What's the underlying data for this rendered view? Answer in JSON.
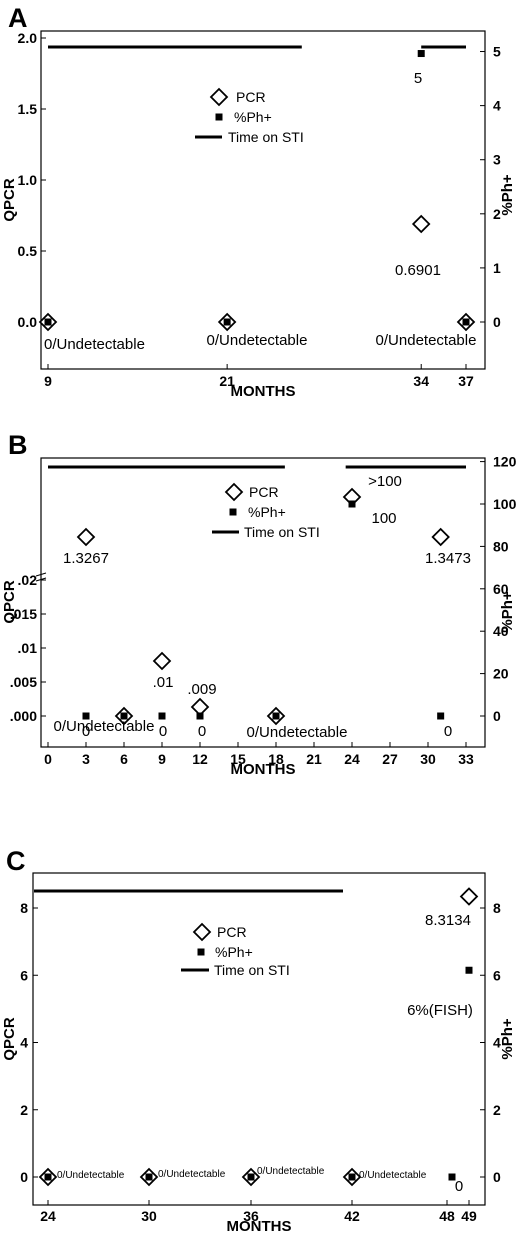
{
  "chart_data": [
    {
      "panel": "A",
      "type": "scatter",
      "xlabel": "MONTHS",
      "ylabel": "QPCR",
      "y2label": "%Ph+",
      "x_ticks": [
        "9",
        "21",
        "34",
        "37"
      ],
      "xlim": [
        9,
        37
      ],
      "y_ticks": [
        "0.0",
        "0.5",
        "1.0",
        "1.5",
        "2.0"
      ],
      "ylim": [
        0,
        2.0
      ],
      "y2_ticks": [
        "0",
        "1",
        "2",
        "3",
        "4",
        "5"
      ],
      "y2lim": [
        0,
        5.25
      ],
      "grid": false,
      "legend": {
        "position": "center-top",
        "entries": [
          "PCR",
          "%Ph+",
          "Time on STI"
        ]
      },
      "series": [
        {
          "name": "PCR",
          "marker": "diamond",
          "axis": "left",
          "points": [
            {
              "x": 9,
              "y": 0
            },
            {
              "x": 21,
              "y": 0
            },
            {
              "x": 34,
              "y": 0.6901
            },
            {
              "x": 37,
              "y": 0
            }
          ]
        },
        {
          "name": "%Ph+",
          "marker": "square",
          "axis": "right",
          "points": [
            {
              "x": 9,
              "y": 0
            },
            {
              "x": 21,
              "y": 0
            },
            {
              "x": 34,
              "y": 5
            },
            {
              "x": 37,
              "y": 0
            }
          ]
        },
        {
          "name": "Time on STI",
          "marker": "line",
          "axis": "right",
          "segments": [
            {
              "x0": 9,
              "x1": 26,
              "y": 5.03
            },
            {
              "x0": 34,
              "x1": 37,
              "y": 5.03
            }
          ]
        }
      ],
      "annotations": [
        {
          "text": "0/Undetectable",
          "x": 9,
          "y": 0
        },
        {
          "text": "0/Undetectable",
          "x": 21,
          "y": 0
        },
        {
          "text": "0/Undetectable",
          "x": 34,
          "y": 0
        },
        {
          "text": "0.6901",
          "x": 34,
          "y": 0.6901
        },
        {
          "text": "5",
          "x": 34,
          "y": 5
        }
      ]
    },
    {
      "panel": "B",
      "type": "scatter",
      "xlabel": "MONTHS",
      "ylabel": "QPCR",
      "y2label": "%Ph+",
      "x_ticks": [
        "0",
        "3",
        "6",
        "9",
        "12",
        "15",
        "18",
        "21",
        "24",
        "27",
        "30",
        "33"
      ],
      "xlim": [
        0,
        33
      ],
      "y_ticks": [
        ".000",
        ".005",
        ".01",
        ".015",
        ".02"
      ],
      "ylim_lower_segment": [
        0,
        0.02
      ],
      "axis_break": "above .02",
      "y2_ticks": [
        "0",
        "20",
        "40",
        "60",
        "80",
        "100",
        "120"
      ],
      "y2lim": [
        -10,
        120
      ],
      "grid": false,
      "legend": {
        "position": "center-top",
        "entries": [
          "PCR",
          "%Ph+",
          "Time on STI"
        ]
      },
      "series": [
        {
          "name": "PCR",
          "marker": "diamond",
          "axis": "left",
          "points": [
            {
              "x": 3,
              "y": 1.3267
            },
            {
              "x": 6,
              "y": 0
            },
            {
              "x": 9,
              "y": 0.01
            },
            {
              "x": 12,
              "y": 0.009
            },
            {
              "x": 18,
              "y": 0
            },
            {
              "x": 24,
              "y": ">100"
            },
            {
              "x": 31,
              "y": 1.3473
            }
          ]
        },
        {
          "name": "%Ph+",
          "marker": "square",
          "axis": "right",
          "points": [
            {
              "x": 3,
              "y": 0
            },
            {
              "x": 6,
              "y": 0
            },
            {
              "x": 9,
              "y": 0
            },
            {
              "x": 12,
              "y": 0
            },
            {
              "x": 18,
              "y": 0
            },
            {
              "x": 24,
              "y": 100
            },
            {
              "x": 31,
              "y": 0
            }
          ]
        },
        {
          "name": "Time on STI",
          "marker": "line",
          "axis": "right",
          "segments": [
            {
              "x0": 0,
              "x1": 18.7,
              "y": 116
            },
            {
              "x0": 23.5,
              "x1": 33,
              "y": 116
            }
          ]
        }
      ],
      "annotations": [
        {
          "text": "1.3267",
          "x": 3
        },
        {
          "text": ".01",
          "x": 9
        },
        {
          "text": ".009",
          "x": 12
        },
        {
          "text": "0/Undetectable",
          "x": 6
        },
        {
          "text": "0/Undetectable",
          "x": 18
        },
        {
          "text": ">100",
          "x": 24
        },
        {
          "text": "100",
          "x": 24
        },
        {
          "text": "1.3473",
          "x": 31
        },
        {
          "text": "0",
          "x": 3
        },
        {
          "text": "0",
          "x": 9
        },
        {
          "text": "0",
          "x": 12
        },
        {
          "text": "0",
          "x": 31
        }
      ]
    },
    {
      "panel": "C",
      "type": "scatter",
      "xlabel": "MONTHS",
      "ylabel": "QPCR",
      "y2label": "%Ph+",
      "x_ticks": [
        "24",
        "30",
        "36",
        "42",
        "48",
        "49"
      ],
      "xlim": [
        24,
        49
      ],
      "y_ticks": [
        "0",
        "2",
        "4",
        "6",
        "8"
      ],
      "ylim": [
        0,
        9
      ],
      "y2_ticks": [
        "0",
        "2",
        "4",
        "6",
        "8"
      ],
      "y2lim": [
        0,
        9
      ],
      "grid": false,
      "legend": {
        "position": "center-top",
        "entries": [
          "PCR",
          "%Ph+",
          "Time on STI"
        ]
      },
      "series": [
        {
          "name": "PCR",
          "marker": "diamond",
          "axis": "left",
          "points": [
            {
              "x": 24,
              "y": 0
            },
            {
              "x": 30,
              "y": 0
            },
            {
              "x": 36,
              "y": 0
            },
            {
              "x": 42,
              "y": 0
            },
            {
              "x": 49,
              "y": 8.3134
            }
          ]
        },
        {
          "name": "%Ph+",
          "marker": "square",
          "axis": "right",
          "points": [
            {
              "x": 24,
              "y": 0
            },
            {
              "x": 30,
              "y": 0
            },
            {
              "x": 36,
              "y": 0
            },
            {
              "x": 42,
              "y": 0
            },
            {
              "x": 48,
              "y": 0
            },
            {
              "x": 49,
              "y": 6
            }
          ]
        },
        {
          "name": "Time on STI",
          "marker": "line",
          "axis": "right",
          "segments": [
            {
              "x0": 24,
              "x1": 42,
              "y": 8.6
            }
          ]
        }
      ],
      "annotations": [
        {
          "text": "0/Undetectable",
          "x": 24
        },
        {
          "text": "0/Undetectable",
          "x": 30
        },
        {
          "text": "0/Undetectable",
          "x": 36
        },
        {
          "text": "0/Undetectable",
          "x": 42
        },
        {
          "text": "8.3134",
          "x": 49
        },
        {
          "text": "6%(FISH)",
          "x": 49
        },
        {
          "text": "0",
          "x": 48
        }
      ]
    }
  ]
}
